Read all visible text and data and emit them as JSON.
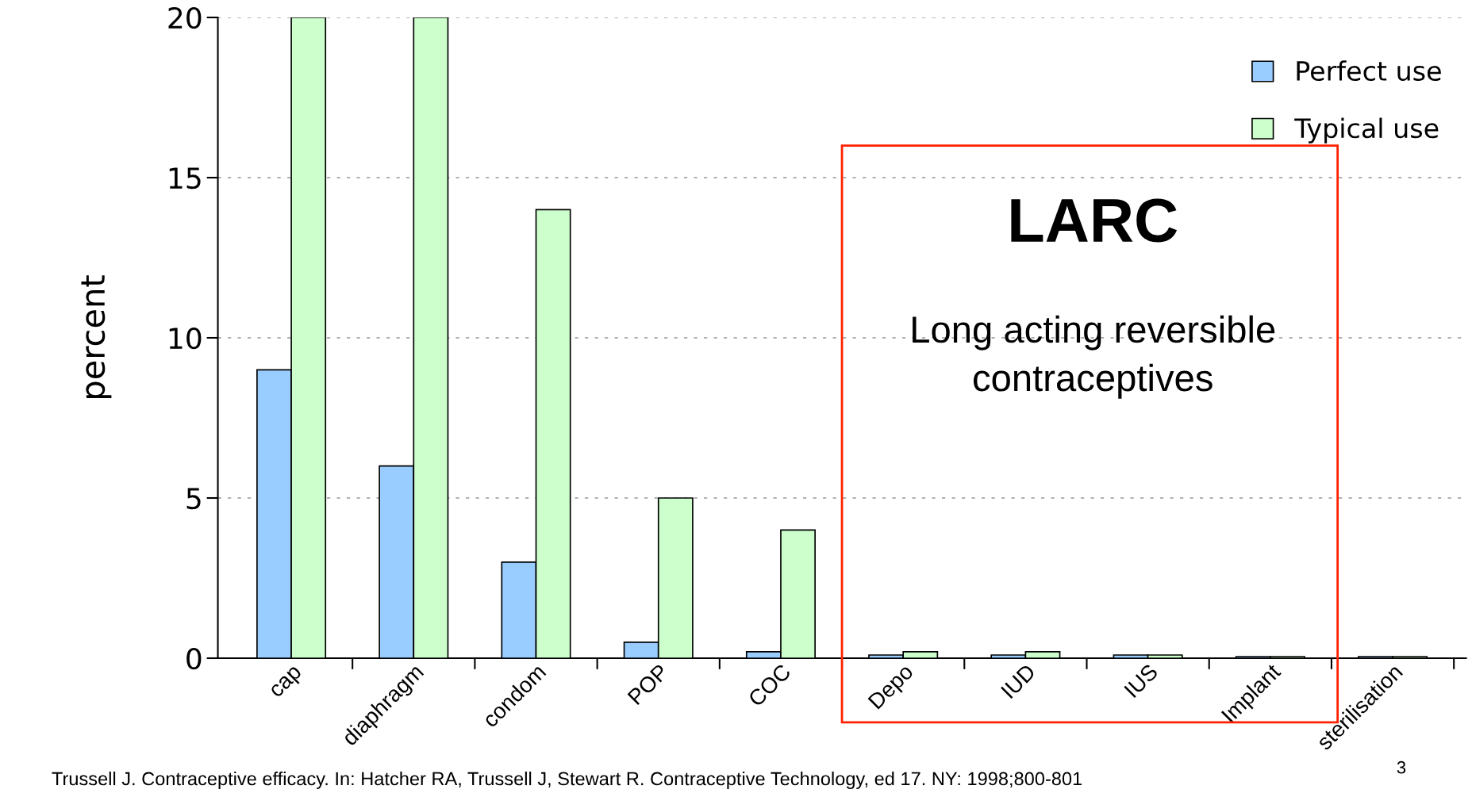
{
  "chart_data": {
    "type": "bar",
    "ylabel": "percent",
    "categories": [
      "cap",
      "diaphragm",
      "condom",
      "POP",
      "COC",
      "Depo",
      "IUD",
      "IUS",
      "Implant",
      "sterilisation"
    ],
    "series": [
      {
        "name": "Perfect use",
        "color": "#99ccff",
        "values": [
          9,
          6,
          3,
          0.5,
          0.2,
          0.1,
          0.1,
          0.1,
          0.05,
          0.05
        ]
      },
      {
        "name": "Typical use",
        "color": "#ccffcc",
        "values": [
          20,
          20,
          14,
          5,
          4,
          0.2,
          0.2,
          0.1,
          0.05,
          0.05
        ]
      }
    ],
    "ylim": [
      0,
      20
    ],
    "yticks": [
      0,
      5,
      10,
      15,
      20
    ],
    "grid": "y",
    "legend": "top right",
    "annotations": [
      "LARC",
      "Long acting reversible\ncontraceptives",
      "Trussell J. Contraceptive efficacy. In: Hatcher RA, Trussell J, Stewart R. Contraceptive Technology, ed 17. NY: 1998;800-801",
      "3"
    ]
  }
}
